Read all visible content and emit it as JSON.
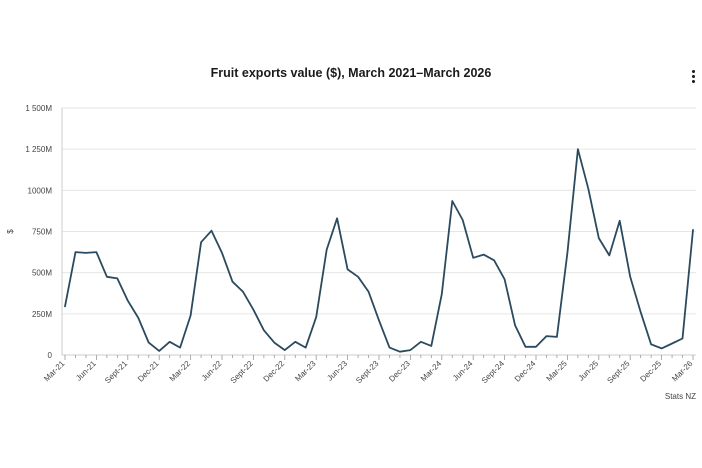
{
  "menu": {
    "icon": "kebab-menu-icon"
  },
  "colors": {
    "line": "#2b4a5e",
    "grid": "#e6e6e6",
    "axis": "#cccccc"
  },
  "chart_data": {
    "type": "line",
    "title": "Fruit exports value ($), March 2021–March 2026",
    "ylabel": "$",
    "xlabel": "",
    "credit": "Stats NZ",
    "ylim": [
      0,
      1500
    ],
    "y_ticks": [
      {
        "value": 0,
        "label": "0"
      },
      {
        "value": 250,
        "label": "250M"
      },
      {
        "value": 500,
        "label": "500M"
      },
      {
        "value": 750,
        "label": "750M"
      },
      {
        "value": 1000,
        "label": "1000M"
      },
      {
        "value": 1250,
        "label": "1 250M"
      },
      {
        "value": 1500,
        "label": "1 500M"
      }
    ],
    "x_tick_labels": [
      "Mar-21",
      "Jun-21",
      "Sept-21",
      "Dec-21",
      "Mar-22",
      "Jun-22",
      "Sept-22",
      "Dec-22",
      "Mar-23",
      "Jun-23",
      "Sept-23",
      "Dec-23",
      "Mar-24",
      "Jun-24",
      "Sept-24",
      "Dec-24",
      "Mar-25",
      "Jun-25",
      "Sept-25",
      "Dec-25",
      "Mar-26"
    ],
    "grid": true,
    "legend": "none",
    "series": [
      {
        "values": [
          295,
          625,
          620,
          625,
          475,
          465,
          330,
          225,
          75,
          25,
          80,
          45,
          240,
          685,
          755,
          620,
          445,
          385,
          275,
          150,
          75,
          30,
          80,
          45,
          230,
          640,
          830,
          520,
          475,
          385,
          210,
          45,
          20,
          30,
          80,
          55,
          370,
          935,
          820,
          590,
          610,
          575,
          460,
          180,
          50,
          50,
          115,
          110,
          620,
          1250,
          1010,
          710,
          605,
          815,
          475,
          260,
          65,
          40,
          70,
          100,
          760
        ]
      }
    ]
  }
}
